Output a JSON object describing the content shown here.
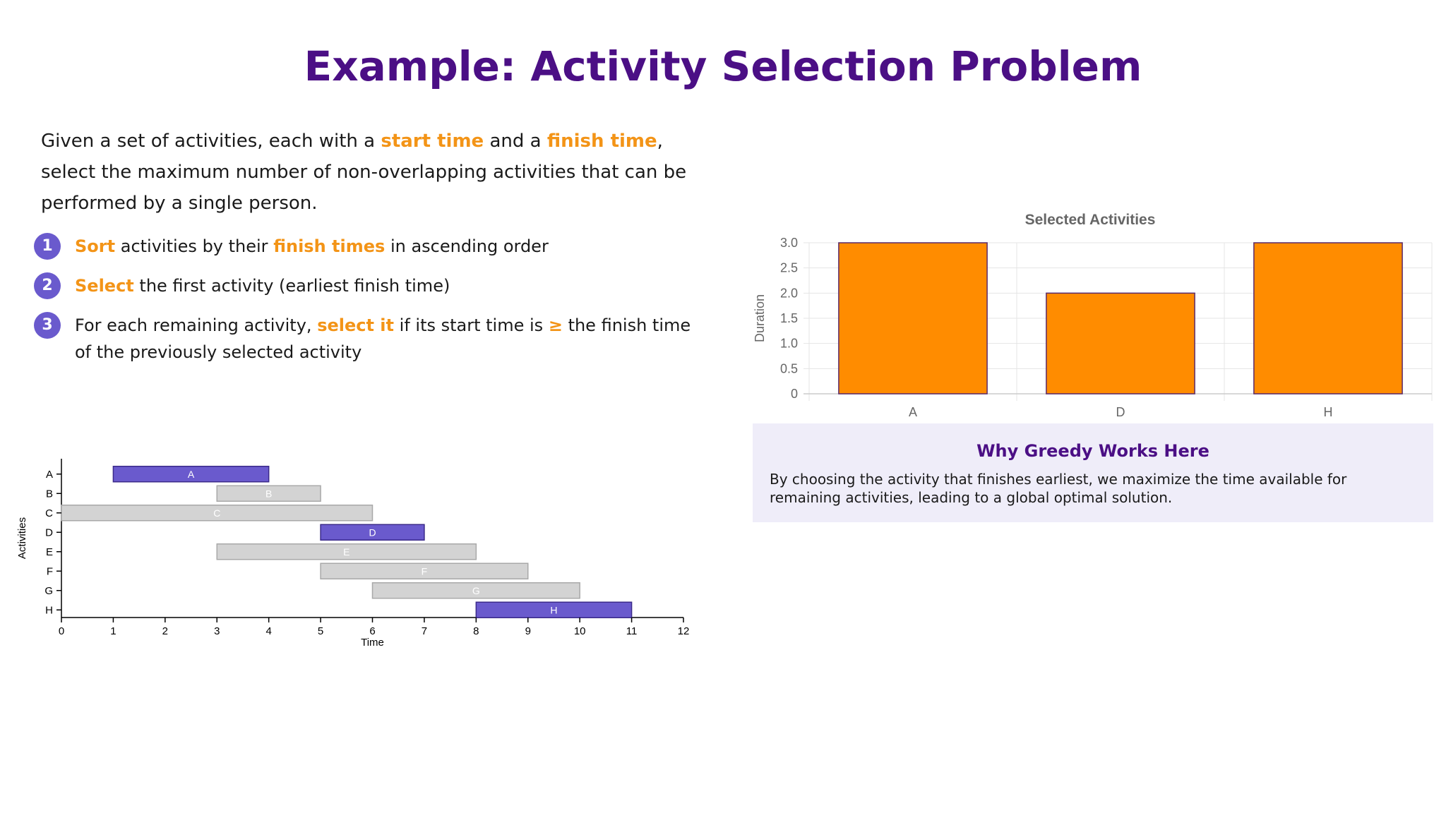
{
  "title": "Example: Activity Selection Problem",
  "intro": {
    "p1": "Given a set of activities, each with a",
    "hl1": "start time",
    "p2": "and a",
    "hl2": "finish time",
    "p3": ", select the maximum number of non-overlapping activities that can be performed by a single person."
  },
  "steps": [
    {
      "num": "1",
      "hl": "Sort",
      "pre": "",
      "post": "activities by their",
      "hl2": "finish times",
      "post2": "in ascending order"
    },
    {
      "num": "2",
      "hl": "Select",
      "pre": "",
      "post": "the first activity (earliest finish time)",
      "hl2": "",
      "post2": ""
    },
    {
      "num": "3",
      "hl": "select it",
      "pre": "For each remaining activity,",
      "post": "if its start time is",
      "hl2": "≥",
      "post2": "the finish time of the previously selected activity"
    }
  ],
  "info_box": {
    "title": "Why Greedy Works Here",
    "text": "By choosing the activity that finishes earliest, we maximize the time available for remaining activities, leading to a global optimal solution."
  },
  "colors": {
    "accent": "#f39417",
    "title": "#4b0f85",
    "selected": "#6a5acd",
    "unselected": "#d3d3d3",
    "bar": "#ff8c00"
  },
  "chart_data": [
    {
      "type": "bar",
      "subtype": "gantt",
      "title": "",
      "xlabel": "Time",
      "ylabel": "Activities",
      "xlim": [
        0,
        12
      ],
      "xticks": [
        0,
        1,
        2,
        3,
        4,
        5,
        6,
        7,
        8,
        9,
        10,
        11,
        12
      ],
      "activities": [
        {
          "name": "A",
          "start": 1,
          "finish": 4,
          "selected": true
        },
        {
          "name": "B",
          "start": 3,
          "finish": 5,
          "selected": false
        },
        {
          "name": "C",
          "start": 0,
          "finish": 6,
          "selected": false
        },
        {
          "name": "D",
          "start": 5,
          "finish": 7,
          "selected": true
        },
        {
          "name": "E",
          "start": 3,
          "finish": 8,
          "selected": false
        },
        {
          "name": "F",
          "start": 5,
          "finish": 9,
          "selected": false
        },
        {
          "name": "G",
          "start": 6,
          "finish": 10,
          "selected": false
        },
        {
          "name": "H",
          "start": 8,
          "finish": 11,
          "selected": true
        }
      ],
      "grid": false
    },
    {
      "type": "bar",
      "title": "Selected Activities",
      "xlabel": "",
      "ylabel": "Duration",
      "categories": [
        "A",
        "D",
        "H"
      ],
      "values": [
        3,
        2,
        3
      ],
      "ylim": [
        0,
        3
      ],
      "yticks": [
        "0",
        "0.5",
        "1.0",
        "1.5",
        "2.0",
        "2.5",
        "3.0"
      ],
      "grid": true
    }
  ]
}
